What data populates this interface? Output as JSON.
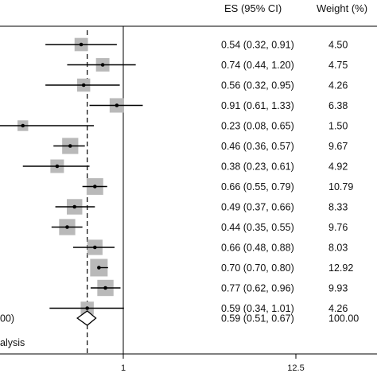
{
  "chart_data": {
    "type": "forest",
    "header": {
      "es": "ES (95% CI)",
      "weight": "Weight (%)"
    },
    "xaxis": {
      "ticks": [
        "1",
        "12.5"
      ]
    },
    "reference_line": 1,
    "pooled_line": 0.59,
    "studies": [
      {
        "es": 0.54,
        "lo": 0.32,
        "hi": 0.91,
        "weight": 4.5,
        "es_text": "0.54 (0.32, 0.91)",
        "weight_text": "4.50"
      },
      {
        "es": 0.74,
        "lo": 0.44,
        "hi": 1.2,
        "weight": 4.75,
        "es_text": "0.74 (0.44, 1.20)",
        "weight_text": "4.75"
      },
      {
        "es": 0.56,
        "lo": 0.32,
        "hi": 0.95,
        "weight": 4.26,
        "es_text": "0.56 (0.32, 0.95)",
        "weight_text": "4.26"
      },
      {
        "es": 0.91,
        "lo": 0.61,
        "hi": 1.33,
        "weight": 6.38,
        "es_text": "0.91 (0.61, 1.33)",
        "weight_text": "6.38"
      },
      {
        "es": 0.23,
        "lo": 0.08,
        "hi": 0.65,
        "weight": 1.5,
        "es_text": "0.23 (0.08, 0.65)",
        "weight_text": "1.50"
      },
      {
        "es": 0.46,
        "lo": 0.36,
        "hi": 0.57,
        "weight": 9.67,
        "es_text": "0.46 (0.36, 0.57)",
        "weight_text": "9.67"
      },
      {
        "es": 0.38,
        "lo": 0.23,
        "hi": 0.61,
        "weight": 4.92,
        "es_text": "0.38 (0.23, 0.61)",
        "weight_text": "4.92"
      },
      {
        "es": 0.66,
        "lo": 0.55,
        "hi": 0.79,
        "weight": 10.79,
        "es_text": "0.66 (0.55, 0.79)",
        "weight_text": "10.79"
      },
      {
        "es": 0.49,
        "lo": 0.37,
        "hi": 0.66,
        "weight": 8.33,
        "es_text": "0.49 (0.37, 0.66)",
        "weight_text": "8.33"
      },
      {
        "es": 0.44,
        "lo": 0.35,
        "hi": 0.55,
        "weight": 9.76,
        "es_text": "0.44 (0.35, 0.55)",
        "weight_text": "9.76"
      },
      {
        "es": 0.66,
        "lo": 0.48,
        "hi": 0.88,
        "weight": 8.03,
        "es_text": "0.66 (0.48, 0.88)",
        "weight_text": "8.03"
      },
      {
        "es": 0.7,
        "lo": 0.7,
        "hi": 0.8,
        "weight": 12.92,
        "es_text": "0.70 (0.70, 0.80)",
        "weight_text": "12.92"
      },
      {
        "es": 0.77,
        "lo": 0.62,
        "hi": 0.96,
        "weight": 9.93,
        "es_text": "0.77 (0.62, 0.96)",
        "weight_text": "9.93"
      },
      {
        "es": 0.59,
        "lo": 0.34,
        "hi": 1.01,
        "weight": 4.26,
        "es_text": "0.59 (0.34, 1.01)",
        "weight_text": "4.26"
      }
    ],
    "overall": {
      "label_fragment": "00)",
      "es": 0.59,
      "lo": 0.51,
      "hi": 0.67,
      "weight": 100.0,
      "es_text": "0.59 (0.51, 0.67)",
      "weight_text": "100.00"
    },
    "footer_note_fragment": "alysis",
    "colors": {
      "box": "#b9b9b9",
      "line": "#000000",
      "text": "#111111"
    }
  }
}
